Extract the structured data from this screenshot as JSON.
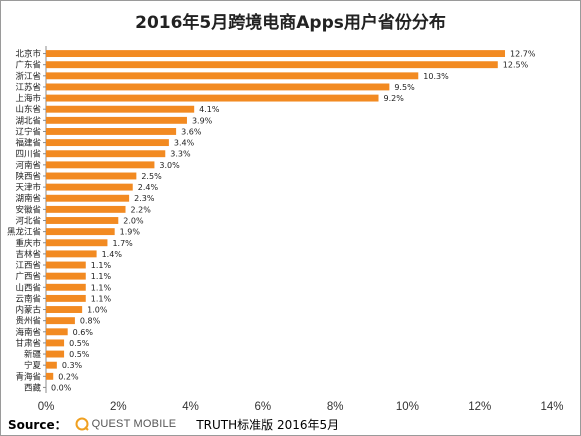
{
  "source": {
    "label": "Source：",
    "logo_text": "QUEST MOBILE",
    "report": "TRUTH标准版 2016年5月"
  },
  "chart_data": {
    "type": "bar",
    "orientation": "horizontal",
    "title": "2016年5月跨境电商Apps用户省份分布",
    "categories": [
      "北京市",
      "广东省",
      "浙江省",
      "江苏省",
      "上海市",
      "山东省",
      "湖北省",
      "辽宁省",
      "福建省",
      "四川省",
      "河南省",
      "陕西省",
      "天津市",
      "湖南省",
      "安徽省",
      "河北省",
      "黑龙江省",
      "重庆市",
      "吉林省",
      "江西省",
      "广西省",
      "山西省",
      "云南省",
      "内蒙古",
      "贵州省",
      "海南省",
      "甘肃省",
      "新疆",
      "宁夏",
      "青海省",
      "西藏"
    ],
    "values": [
      12.7,
      12.5,
      10.3,
      9.5,
      9.2,
      4.1,
      3.9,
      3.6,
      3.4,
      3.3,
      3.0,
      2.5,
      2.4,
      2.3,
      2.2,
      2.0,
      1.9,
      1.7,
      1.4,
      1.1,
      1.1,
      1.1,
      1.1,
      1.0,
      0.8,
      0.6,
      0.5,
      0.5,
      0.3,
      0.2,
      0.0
    ],
    "value_labels": [
      "12.7%",
      "12.5%",
      "10.3%",
      "9.5%",
      "9.2%",
      "4.1%",
      "3.9%",
      "3.6%",
      "3.4%",
      "3.3%",
      "3.0%",
      "2.5%",
      "2.4%",
      "2.3%",
      "2.2%",
      "2.0%",
      "1.9%",
      "1.7%",
      "1.4%",
      "1.1%",
      "1.1%",
      "1.1%",
      "1.1%",
      "1.0%",
      "0.8%",
      "0.6%",
      "0.5%",
      "0.5%",
      "0.3%",
      "0.2%",
      "0.0%"
    ],
    "xlim": [
      0,
      14
    ],
    "xticks": [
      0,
      2,
      4,
      6,
      8,
      10,
      12,
      14
    ],
    "xtick_labels": [
      "0%",
      "2%",
      "4%",
      "6%",
      "8%",
      "10%",
      "12%",
      "14%"
    ],
    "bar_color": "#F28A21",
    "grid": false
  }
}
